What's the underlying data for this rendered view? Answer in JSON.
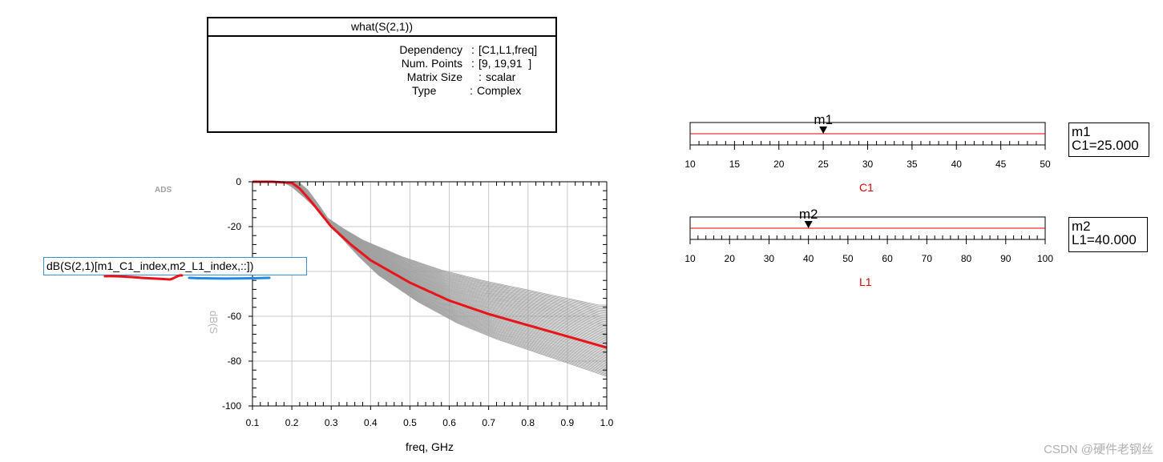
{
  "info_box": {
    "title": "what(S(2,1))",
    "rows": [
      {
        "key": "Dependency",
        "sep": ":",
        "value": "[C1,L1,freq]"
      },
      {
        "key": "Num. Points",
        "sep": ":",
        "value": "[9, 19,91  ]"
      },
      {
        "key": "Matrix Size",
        "sep": ":",
        "value": "scalar"
      },
      {
        "key": "Type",
        "sep": ":",
        "value": "Complex"
      }
    ]
  },
  "ads_label": "ADS",
  "equation": "dB(S(2,1)[m1_C1_index,m2_L1_index,::])",
  "colors": {
    "highlight": "#e8141a",
    "family": "#a0a0a0",
    "grid": "#c8c8c8",
    "blue_annot": "#1e8ae6",
    "slider_line": "#e00000"
  },
  "chart_data": {
    "type": "line",
    "xlabel": "freq, GHz",
    "ylabel": "",
    "xlim": [
      0.1,
      1.0
    ],
    "ylim": [
      -100,
      0
    ],
    "xticks": [
      "0.1",
      "0.2",
      "0.3",
      "0.4",
      "0.5",
      "0.6",
      "0.7",
      "0.8",
      "0.9",
      "1.0"
    ],
    "yticks": [
      "0",
      "-20",
      "-40",
      "-60",
      "-80",
      "-100"
    ],
    "highlight_series": {
      "name": "dB(S(2,1)[m1_C1_index,m2_L1_index,::])",
      "x": [
        0.1,
        0.15,
        0.2,
        0.22,
        0.25,
        0.3,
        0.35,
        0.4,
        0.5,
        0.6,
        0.7,
        0.8,
        0.9,
        1.0
      ],
      "y": [
        0,
        0,
        -0.5,
        -3,
        -9,
        -20,
        -28,
        -35,
        -45,
        -53,
        -59,
        -64,
        -69,
        -74
      ]
    },
    "family_range": {
      "upper_end_at_1GHz": -55,
      "lower_end_at_1GHz": -88,
      "count": 171
    }
  },
  "sliders": [
    {
      "marker": "m1",
      "var": "C1",
      "value_label": "C1=25.000",
      "value": 25,
      "min": 10,
      "max": 50,
      "ticks": [
        "10",
        "15",
        "20",
        "25",
        "30",
        "35",
        "40",
        "45",
        "50"
      ]
    },
    {
      "marker": "m2",
      "var": "L1",
      "value_label": "L1=40.000",
      "value": 40,
      "min": 10,
      "max": 100,
      "ticks": [
        "10",
        "20",
        "30",
        "40",
        "50",
        "60",
        "70",
        "80",
        "90",
        "100"
      ]
    }
  ],
  "watermark": "CSDN @硬件老钢丝"
}
